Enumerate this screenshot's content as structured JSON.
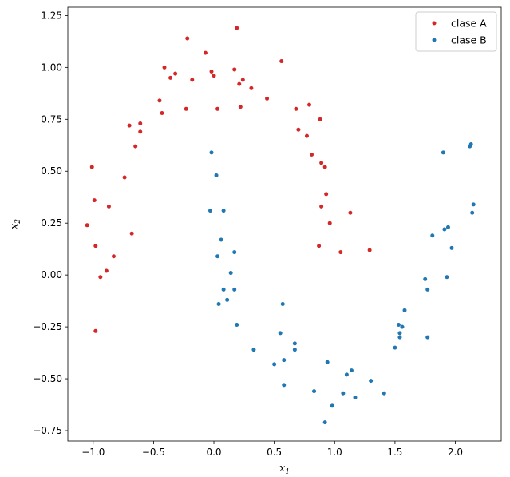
{
  "chart_data": {
    "type": "scatter",
    "title": "",
    "xlabel": {
      "base": "x",
      "sub": "1"
    },
    "ylabel": {
      "base": "x",
      "sub": "2"
    },
    "xlim": [
      -1.21,
      2.38
    ],
    "ylim": [
      -0.8,
      1.29
    ],
    "xticks": [
      -1.0,
      -0.5,
      0.0,
      0.5,
      1.0,
      1.5,
      2.0
    ],
    "xtick_labels": [
      "−1.0",
      "−0.5",
      "0.0",
      "0.5",
      "1.0",
      "1.5",
      "2.0"
    ],
    "yticks": [
      -0.75,
      -0.5,
      -0.25,
      0.0,
      0.25,
      0.5,
      0.75,
      1.0,
      1.25
    ],
    "ytick_labels": [
      "−0.75",
      "−0.50",
      "−0.25",
      "0.00",
      "0.25",
      "0.50",
      "0.75",
      "1.00",
      "1.25"
    ],
    "grid": false,
    "legend_position": "top-right",
    "series": [
      {
        "name": "clase A",
        "color": "#d62728",
        "points": [
          [
            -1.01,
            0.52
          ],
          [
            -1.05,
            0.24
          ],
          [
            -0.99,
            0.36
          ],
          [
            -0.98,
            0.14
          ],
          [
            -0.98,
            -0.27
          ],
          [
            -0.94,
            -0.01
          ],
          [
            -0.89,
            0.02
          ],
          [
            -0.87,
            0.33
          ],
          [
            -0.83,
            0.09
          ],
          [
            -0.74,
            0.47
          ],
          [
            -0.7,
            0.72
          ],
          [
            -0.68,
            0.2
          ],
          [
            -0.65,
            0.62
          ],
          [
            -0.61,
            0.73
          ],
          [
            -0.61,
            0.69
          ],
          [
            -0.45,
            0.84
          ],
          [
            -0.43,
            0.78
          ],
          [
            -0.41,
            1.0
          ],
          [
            -0.36,
            0.95
          ],
          [
            -0.32,
            0.97
          ],
          [
            -0.23,
            0.8
          ],
          [
            -0.22,
            1.14
          ],
          [
            -0.18,
            0.94
          ],
          [
            -0.07,
            1.07
          ],
          [
            -0.02,
            0.98
          ],
          [
            0.0,
            0.96
          ],
          [
            0.03,
            0.8
          ],
          [
            0.17,
            0.99
          ],
          [
            0.19,
            1.19
          ],
          [
            0.21,
            0.92
          ],
          [
            0.22,
            0.81
          ],
          [
            0.24,
            0.94
          ],
          [
            0.31,
            0.9
          ],
          [
            0.44,
            0.85
          ],
          [
            0.56,
            1.03
          ],
          [
            0.68,
            0.8
          ],
          [
            0.7,
            0.7
          ],
          [
            0.77,
            0.67
          ],
          [
            0.79,
            0.82
          ],
          [
            0.81,
            0.58
          ],
          [
            0.88,
            0.75
          ],
          [
            0.89,
            0.54
          ],
          [
            0.92,
            0.52
          ],
          [
            0.93,
            0.39
          ],
          [
            0.89,
            0.33
          ],
          [
            0.87,
            0.14
          ],
          [
            0.96,
            0.25
          ],
          [
            1.05,
            0.11
          ],
          [
            1.13,
            0.3
          ],
          [
            1.29,
            0.12
          ]
        ]
      },
      {
        "name": "clase B",
        "color": "#1f77b4",
        "points": [
          [
            -0.02,
            0.59
          ],
          [
            -0.03,
            0.31
          ],
          [
            0.02,
            0.48
          ],
          [
            0.03,
            0.09
          ],
          [
            0.04,
            -0.14
          ],
          [
            0.06,
            0.17
          ],
          [
            0.08,
            0.31
          ],
          [
            0.08,
            -0.07
          ],
          [
            0.11,
            -0.12
          ],
          [
            0.14,
            0.01
          ],
          [
            0.17,
            0.11
          ],
          [
            0.17,
            -0.07
          ],
          [
            0.19,
            -0.24
          ],
          [
            0.33,
            -0.36
          ],
          [
            0.5,
            -0.43
          ],
          [
            0.55,
            -0.28
          ],
          [
            0.57,
            -0.14
          ],
          [
            0.58,
            -0.41
          ],
          [
            0.58,
            -0.53
          ],
          [
            0.67,
            -0.33
          ],
          [
            0.67,
            -0.36
          ],
          [
            0.83,
            -0.56
          ],
          [
            0.92,
            -0.71
          ],
          [
            0.94,
            -0.42
          ],
          [
            0.98,
            -0.63
          ],
          [
            1.07,
            -0.57
          ],
          [
            1.1,
            -0.48
          ],
          [
            1.14,
            -0.46
          ],
          [
            1.17,
            -0.59
          ],
          [
            1.3,
            -0.51
          ],
          [
            1.41,
            -0.57
          ],
          [
            1.5,
            -0.35
          ],
          [
            1.53,
            -0.24
          ],
          [
            1.54,
            -0.28
          ],
          [
            1.54,
            -0.3
          ],
          [
            1.56,
            -0.25
          ],
          [
            1.58,
            -0.17
          ],
          [
            1.75,
            -0.02
          ],
          [
            1.77,
            -0.07
          ],
          [
            1.77,
            -0.3
          ],
          [
            1.81,
            0.19
          ],
          [
            1.9,
            0.59
          ],
          [
            1.91,
            0.22
          ],
          [
            1.93,
            -0.01
          ],
          [
            1.94,
            0.23
          ],
          [
            1.97,
            0.13
          ],
          [
            2.12,
            0.62
          ],
          [
            2.13,
            0.63
          ],
          [
            2.14,
            0.3
          ],
          [
            2.15,
            0.34
          ]
        ]
      }
    ]
  }
}
